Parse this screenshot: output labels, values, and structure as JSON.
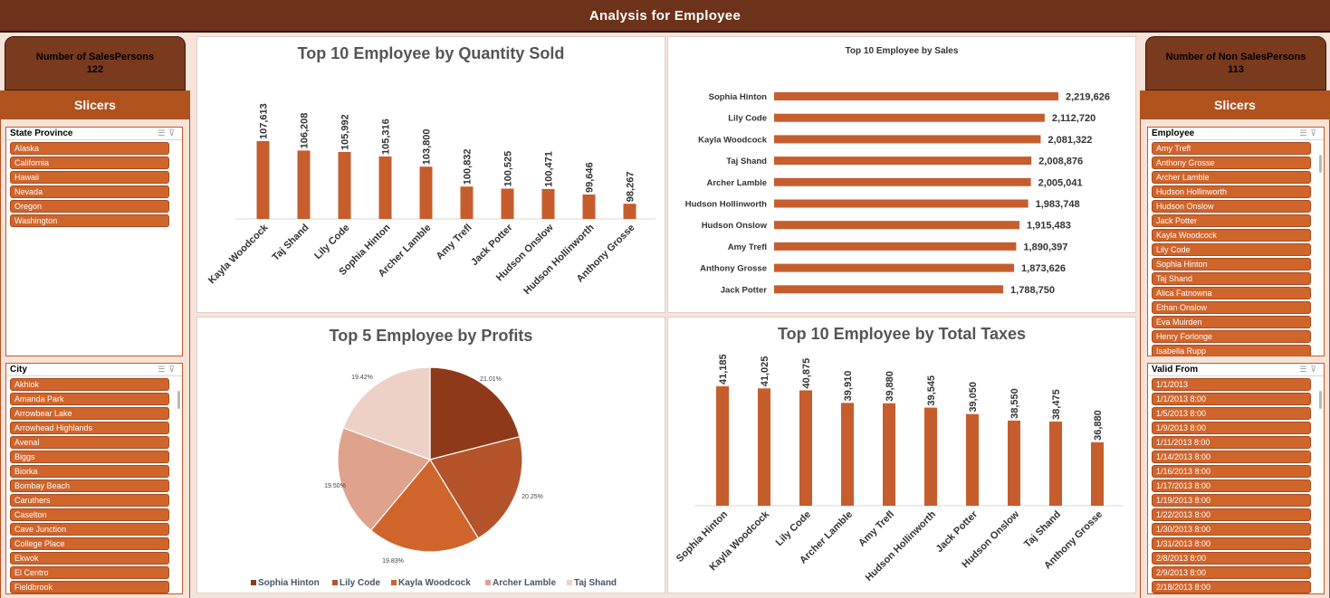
{
  "title": "Analysis for Employee",
  "left_stat": {
    "label": "Number of SalesPersons",
    "value": "122"
  },
  "right_stat": {
    "label": "Number of Non SalesPersons",
    "value": "113"
  },
  "slicers_label": "Slicers",
  "left_slicers": [
    {
      "title": "State Province",
      "items": [
        "Alaska",
        "California",
        "Hawaii",
        "Nevada",
        "Oregon",
        "Washington"
      ]
    },
    {
      "title": "City",
      "items": [
        "Akhiok",
        "Amanda Park",
        "Arrowbear Lake",
        "Arrowhead Highlands",
        "Avenal",
        "Biggs",
        "Biorka",
        "Bombay Beach",
        "Caruthers",
        "Caselton",
        "Cave Junction",
        "College Place",
        "Ekwok",
        "El Centro",
        "Fieldbrook"
      ]
    }
  ],
  "right_slicers": [
    {
      "title": "Employee",
      "items": [
        "Amy Trefl",
        "Anthony Grosse",
        "Archer Lamble",
        "Hudson Hollinworth",
        "Hudson Onslow",
        "Jack Potter",
        "Kayla Woodcock",
        "Lily Code",
        "Sophia Hinton",
        "Taj Shand",
        "Alica Fatnowna",
        "Ethan Onslow",
        "Eva Muirden",
        "Henry Forlonge",
        "Isabella Rupp"
      ]
    },
    {
      "title": "Valid From",
      "items": [
        "1/1/2013",
        "1/1/2013 8:00",
        "1/5/2013 8:00",
        "1/9/2013 8:00",
        "1/11/2013 8:00",
        "1/14/2013 8:00",
        "1/16/2013 8:00",
        "1/17/2013 8:00",
        "1/19/2013 8:00",
        "1/22/2013 8:00",
        "1/30/2013 8:00",
        "1/31/2013 8:00",
        "2/8/2013 8:00",
        "2/9/2013 8:00",
        "2/18/2013 8:00"
      ]
    }
  ],
  "colors": {
    "bar": "#c65d2c",
    "header": "#6d321a",
    "slicer": "#d0652c"
  },
  "chart_data": [
    {
      "type": "bar",
      "title": "Top 10 Employee by Quantity Sold",
      "categories": [
        "Kayla Woodcock",
        "Taj Shand",
        "Lily Code",
        "Sophia Hinton",
        "Archer Lamble",
        "Amy Trefl",
        "Jack Potter",
        "Hudson Onslow",
        "Hudson Hollinworth",
        "Anthony Grosse"
      ],
      "values": [
        107613,
        106208,
        105992,
        105316,
        103800,
        100832,
        100525,
        100471,
        99646,
        98267
      ],
      "data_labels": [
        "107,613",
        "106,208",
        "105,992",
        "105,316",
        "103,800",
        "100,832",
        "100,525",
        "100,471",
        "99,646",
        "98,267"
      ]
    },
    {
      "type": "bar",
      "orientation": "horizontal",
      "title": "Top 10 Employee by Sales",
      "categories": [
        "Sophia Hinton",
        "Lily Code",
        "Kayla Woodcock",
        "Taj Shand",
        "Archer Lamble",
        "Hudson Hollinworth",
        "Hudson Onslow",
        "Amy Trefl",
        "Anthony Grosse",
        "Jack Potter"
      ],
      "values": [
        2219626,
        2112720,
        2081322,
        2008876,
        2005041,
        1983748,
        1915483,
        1890397,
        1873626,
        1788750
      ],
      "data_labels": [
        "2,219,626",
        "2,112,720",
        "2,081,322",
        "2,008,876",
        "2,005,041",
        "1,983,748",
        "1,915,483",
        "1,890,397",
        "1,873,626",
        "1,788,750"
      ]
    },
    {
      "type": "pie",
      "title": "Top 5 Employee by Profits",
      "categories": [
        "Sophia Hinton",
        "Lily Code",
        "Kayla Woodcock",
        "Archer Lamble",
        "Taj Shand"
      ],
      "values": [
        21.01,
        20.25,
        19.83,
        19.5,
        19.42
      ],
      "data_labels": [
        "21.01%",
        "20.25%",
        "19.83%",
        "19.50%",
        "19.42%"
      ],
      "colors": [
        "#8e3a1a",
        "#b5532a",
        "#d0652c",
        "#dfa38d",
        "#edd0c6"
      ],
      "legend": "bottom"
    },
    {
      "type": "bar",
      "title": "Top 10 Employee by Total Taxes",
      "categories": [
        "Sophia Hinton",
        "Kayla Woodcock",
        "Lily Code",
        "Archer Lamble",
        "Amy Trefl",
        "Hudson Hollinworth",
        "Jack Potter",
        "Hudson Onslow",
        "Taj Shand",
        "Anthony Grosse"
      ],
      "values": [
        41185,
        41025,
        40875,
        39910,
        39880,
        39545,
        39050,
        38550,
        38475,
        36880
      ],
      "data_labels": [
        "41,185",
        "41,025",
        "40,875",
        "39,910",
        "39,880",
        "39,545",
        "39,050",
        "38,550",
        "38,475",
        "36,880"
      ]
    }
  ]
}
